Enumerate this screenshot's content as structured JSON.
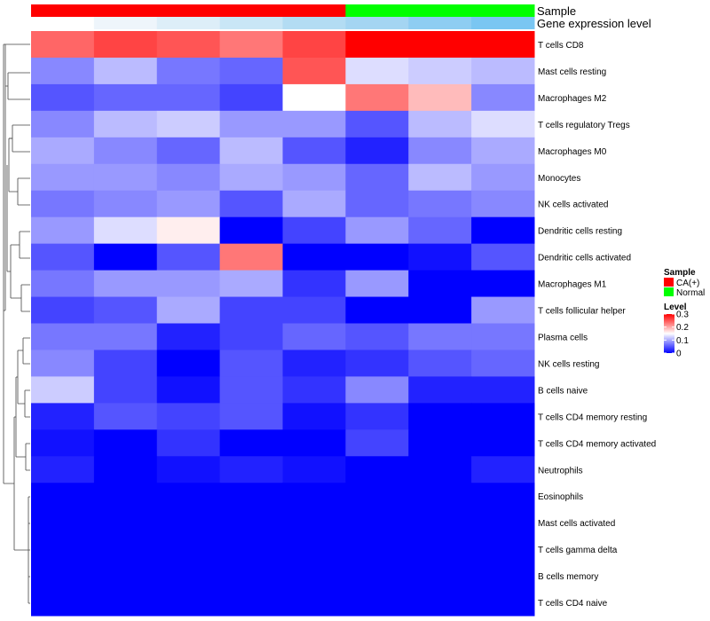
{
  "chart_data": {
    "type": "heatmap",
    "samples": 8,
    "annotation_tracks": [
      {
        "label": "Sample",
        "values": [
          "CA(+)",
          "CA(+)",
          "CA(+)",
          "CA(+)",
          "CA(+)",
          "Normal",
          "Normal",
          "Normal"
        ]
      },
      {
        "label": "Gene expression level",
        "colors": [
          "#ffffff",
          "#eef5fb",
          "#ddeef8",
          "#c9e6f6",
          "#b3dcf3",
          "#a4d5f2",
          "#8ecdf2",
          "#7ac6f2"
        ]
      }
    ],
    "rows": [
      "T cells CD8",
      "Mast cells resting",
      "Macrophages M2",
      "T cells regulatory  Tregs",
      "Macrophages M0",
      "Monocytes",
      "NK cells activated",
      "Dendritic cells resting",
      "Dendritic cells activated",
      "Macrophages M1",
      "T cells follicular helper",
      "Plasma cells",
      "NK cells resting",
      "B cells naive",
      "T cells CD4 memory resting",
      "T cells CD4 memory activated",
      "Neutrophils",
      "Eosinophils",
      "Mast cells activated",
      "T cells gamma delta",
      "B cells memory",
      "T cells CD4 naive"
    ],
    "values": [
      [
        0.24,
        0.26,
        0.25,
        0.23,
        0.26,
        0.3,
        0.3,
        0.3
      ],
      [
        0.08,
        0.11,
        0.07,
        0.06,
        0.25,
        0.13,
        0.12,
        0.11
      ],
      [
        0.05,
        0.06,
        0.06,
        0.04,
        0.15,
        0.23,
        0.19,
        0.08
      ],
      [
        0.08,
        0.11,
        0.12,
        0.09,
        0.09,
        0.05,
        0.11,
        0.13
      ],
      [
        0.1,
        0.08,
        0.06,
        0.11,
        0.05,
        0.02,
        0.08,
        0.1
      ],
      [
        0.09,
        0.09,
        0.08,
        0.1,
        0.09,
        0.06,
        0.11,
        0.09
      ],
      [
        0.07,
        0.08,
        0.09,
        0.05,
        0.1,
        0.06,
        0.07,
        0.08
      ],
      [
        0.09,
        0.13,
        0.16,
        0.0,
        0.04,
        0.09,
        0.06,
        0.0
      ],
      [
        0.05,
        0.0,
        0.05,
        0.23,
        0.0,
        0.0,
        0.01,
        0.05
      ],
      [
        0.07,
        0.09,
        0.09,
        0.1,
        0.03,
        0.09,
        0.0,
        0.0
      ],
      [
        0.04,
        0.05,
        0.1,
        0.04,
        0.04,
        0.0,
        0.0,
        0.09
      ],
      [
        0.07,
        0.07,
        0.02,
        0.04,
        0.06,
        0.05,
        0.07,
        0.07
      ],
      [
        0.08,
        0.04,
        0.0,
        0.05,
        0.02,
        0.03,
        0.05,
        0.06
      ],
      [
        0.12,
        0.04,
        0.01,
        0.05,
        0.03,
        0.08,
        0.02,
        0.02
      ],
      [
        0.02,
        0.05,
        0.04,
        0.05,
        0.01,
        0.03,
        0.0,
        0.0
      ],
      [
        0.01,
        0.0,
        0.03,
        0.0,
        0.0,
        0.04,
        0.0,
        0.0
      ],
      [
        0.02,
        0.0,
        0.01,
        0.02,
        0.01,
        0.0,
        0.0,
        0.02
      ],
      [
        0.0,
        0.0,
        0.0,
        0.0,
        0.0,
        0.0,
        0.0,
        0.0
      ],
      [
        0.0,
        0.0,
        0.0,
        0.0,
        0.0,
        0.0,
        0.0,
        0.0
      ],
      [
        0.0,
        0.0,
        0.0,
        0.0,
        0.0,
        0.0,
        0.0,
        0.0
      ],
      [
        0.0,
        0.0,
        0.0,
        0.0,
        0.0,
        0.0,
        0.0,
        0.0
      ],
      [
        0.0,
        0.0,
        0.0,
        0.0,
        0.0,
        0.0,
        0.0,
        0.0
      ]
    ],
    "color_scale": {
      "low": "#0000ff",
      "mid": "#ffffff",
      "high": "#ff0000",
      "midpoint": 0.15,
      "range": [
        0,
        0.3
      ]
    },
    "legend_sample": {
      "title": "Sample",
      "items": [
        {
          "label": "CA(+)",
          "color": "#ff0000"
        },
        {
          "label": "Normal",
          "color": "#00ff00"
        }
      ]
    },
    "legend_level": {
      "title": "Level",
      "ticks": [
        {
          "value": 0.3,
          "label": "0.3"
        },
        {
          "value": 0.2,
          "label": "0.2"
        },
        {
          "value": 0.1,
          "label": "0.1"
        },
        {
          "value": 0,
          "label": "0"
        }
      ]
    },
    "dendrogram": "row"
  }
}
